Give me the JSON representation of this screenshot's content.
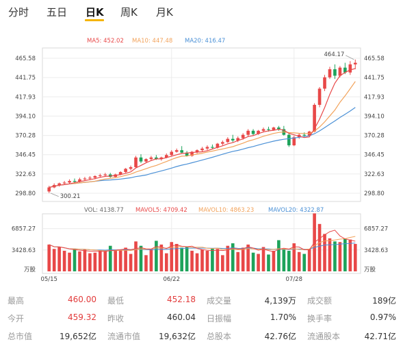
{
  "tabs": [
    {
      "label": "分时",
      "active": false
    },
    {
      "label": "五日",
      "active": false
    },
    {
      "label": "日K",
      "active": true
    },
    {
      "label": "周K",
      "active": false
    },
    {
      "label": "月K",
      "active": false
    }
  ],
  "colors": {
    "up": "#e84848",
    "down": "#1ea35b",
    "ma5": "#e84848",
    "ma10": "#f2a25a",
    "ma20": "#4a90d6",
    "accent": "#f5b400"
  },
  "chart_data": [
    {
      "type": "candlestick",
      "ma_legend": [
        {
          "label": "MA5: 452.02",
          "color": "#e84848"
        },
        {
          "label": "MA10: 447.48",
          "color": "#f2a25a"
        },
        {
          "label": "MA20: 416.47",
          "color": "#4a90d6"
        }
      ],
      "y_ticks": [
        "465.58",
        "441.75",
        "417.93",
        "394.10",
        "370.28",
        "346.45",
        "322.63",
        "298.80"
      ],
      "ylim": [
        298.8,
        465.58
      ],
      "x_ticks": [
        "05/15",
        "06/22",
        "07/28"
      ],
      "high_marker": "464.17",
      "low_marker": "300.21",
      "candles": [
        [
          301,
          308,
          299,
          306
        ],
        [
          306,
          311,
          305,
          309
        ],
        [
          309,
          312,
          307,
          311
        ],
        [
          311,
          314,
          309,
          312
        ],
        [
          312,
          316,
          310,
          314
        ],
        [
          314,
          317,
          311,
          313
        ],
        [
          313,
          318,
          312,
          316
        ],
        [
          316,
          319,
          314,
          317
        ],
        [
          317,
          320,
          315,
          318
        ],
        [
          318,
          321,
          316,
          320
        ],
        [
          320,
          323,
          318,
          321
        ],
        [
          321,
          324,
          319,
          322
        ],
        [
          322,
          324,
          318,
          319
        ],
        [
          319,
          323,
          318,
          322
        ],
        [
          322,
          326,
          321,
          325
        ],
        [
          325,
          330,
          324,
          329
        ],
        [
          329,
          333,
          327,
          331
        ],
        [
          331,
          345,
          330,
          343
        ],
        [
          343,
          347,
          336,
          338
        ],
        [
          338,
          342,
          336,
          341
        ],
        [
          341,
          345,
          339,
          343
        ],
        [
          343,
          346,
          340,
          341
        ],
        [
          341,
          344,
          339,
          343
        ],
        [
          343,
          348,
          342,
          346
        ],
        [
          346,
          352,
          345,
          350
        ],
        [
          350,
          354,
          349,
          352
        ],
        [
          352,
          357,
          348,
          349
        ],
        [
          349,
          351,
          344,
          345
        ],
        [
          345,
          351,
          344,
          350
        ],
        [
          350,
          353,
          348,
          352
        ],
        [
          352,
          356,
          350,
          354
        ],
        [
          354,
          358,
          352,
          356
        ],
        [
          356,
          359,
          353,
          355
        ],
        [
          355,
          361,
          354,
          360
        ],
        [
          360,
          364,
          358,
          362
        ],
        [
          362,
          368,
          361,
          366
        ],
        [
          366,
          371,
          362,
          364
        ],
        [
          364,
          369,
          362,
          367
        ],
        [
          367,
          373,
          365,
          371
        ],
        [
          371,
          378,
          369,
          376
        ],
        [
          376,
          378,
          370,
          372
        ],
        [
          372,
          377,
          371,
          376
        ],
        [
          376,
          380,
          374,
          378
        ],
        [
          378,
          381,
          375,
          377
        ],
        [
          377,
          381,
          376,
          380
        ],
        [
          380,
          382,
          376,
          378
        ],
        [
          378,
          382,
          370,
          371
        ],
        [
          371,
          373,
          356,
          358
        ],
        [
          358,
          370,
          357,
          368
        ],
        [
          368,
          373,
          366,
          371
        ],
        [
          371,
          374,
          369,
          370
        ],
        [
          370,
          376,
          369,
          375
        ],
        [
          375,
          410,
          374,
          408
        ],
        [
          408,
          430,
          405,
          428
        ],
        [
          428,
          445,
          425,
          442
        ],
        [
          442,
          455,
          440,
          452
        ],
        [
          452,
          458,
          440,
          444
        ],
        [
          444,
          456,
          442,
          454
        ],
        [
          454,
          460,
          446,
          448
        ],
        [
          448,
          462,
          445,
          458
        ],
        [
          458,
          464,
          452,
          460
        ]
      ],
      "volumes": [
        4300,
        3600,
        3900,
        3300,
        3000,
        3600,
        3200,
        3500,
        2900,
        3000,
        3400,
        3200,
        4100,
        3300,
        3500,
        3800,
        2800,
        4800,
        4100,
        2600,
        3600,
        4900,
        4300,
        2900,
        4700,
        4400,
        3800,
        4000,
        3300,
        2900,
        3500,
        3300,
        3700,
        3600,
        2600,
        4100,
        4500,
        3100,
        3800,
        4300,
        3000,
        2800,
        3900,
        2700,
        3300,
        5000,
        3600,
        3300,
        4500,
        3100,
        2800,
        3600,
        9300,
        7600,
        6000,
        5300,
        4800,
        4700,
        5200,
        5100,
        4400
      ],
      "vol_legend": [
        {
          "label": "VOL: 4138.77",
          "color": "#666666"
        },
        {
          "label": "MAVOL5: 4709.42",
          "color": "#e84848"
        },
        {
          "label": "MAVOL10: 4863.23",
          "color": "#f2a25a"
        },
        {
          "label": "MAVOL20: 4322.87",
          "color": "#4a90d6"
        }
      ],
      "vol_ticks": [
        "6857.27",
        "3428.63"
      ],
      "vol_unit": "万股"
    }
  ],
  "stats": [
    [
      {
        "label": "最高",
        "value": "460.00",
        "red": true
      },
      {
        "label": "最低",
        "value": "452.18",
        "red": true
      },
      {
        "label": "成交量",
        "value": "4,139万",
        "red": false
      },
      {
        "label": "成交额",
        "value": "189亿",
        "red": false
      }
    ],
    [
      {
        "label": "今开",
        "value": "459.32",
        "red": true
      },
      {
        "label": "昨收",
        "value": "460.04",
        "red": false
      },
      {
        "label": "日振幅",
        "value": "1.70%",
        "red": false
      },
      {
        "label": "换手率",
        "value": "0.97%",
        "red": false
      }
    ],
    [
      {
        "label": "总市值",
        "value": "19,652亿",
        "red": false
      },
      {
        "label": "流通市值",
        "value": "19,632亿",
        "red": false
      },
      {
        "label": "总股本",
        "value": "42.76亿",
        "red": false
      },
      {
        "label": "流通股本",
        "value": "42.71亿",
        "red": false
      }
    ]
  ]
}
